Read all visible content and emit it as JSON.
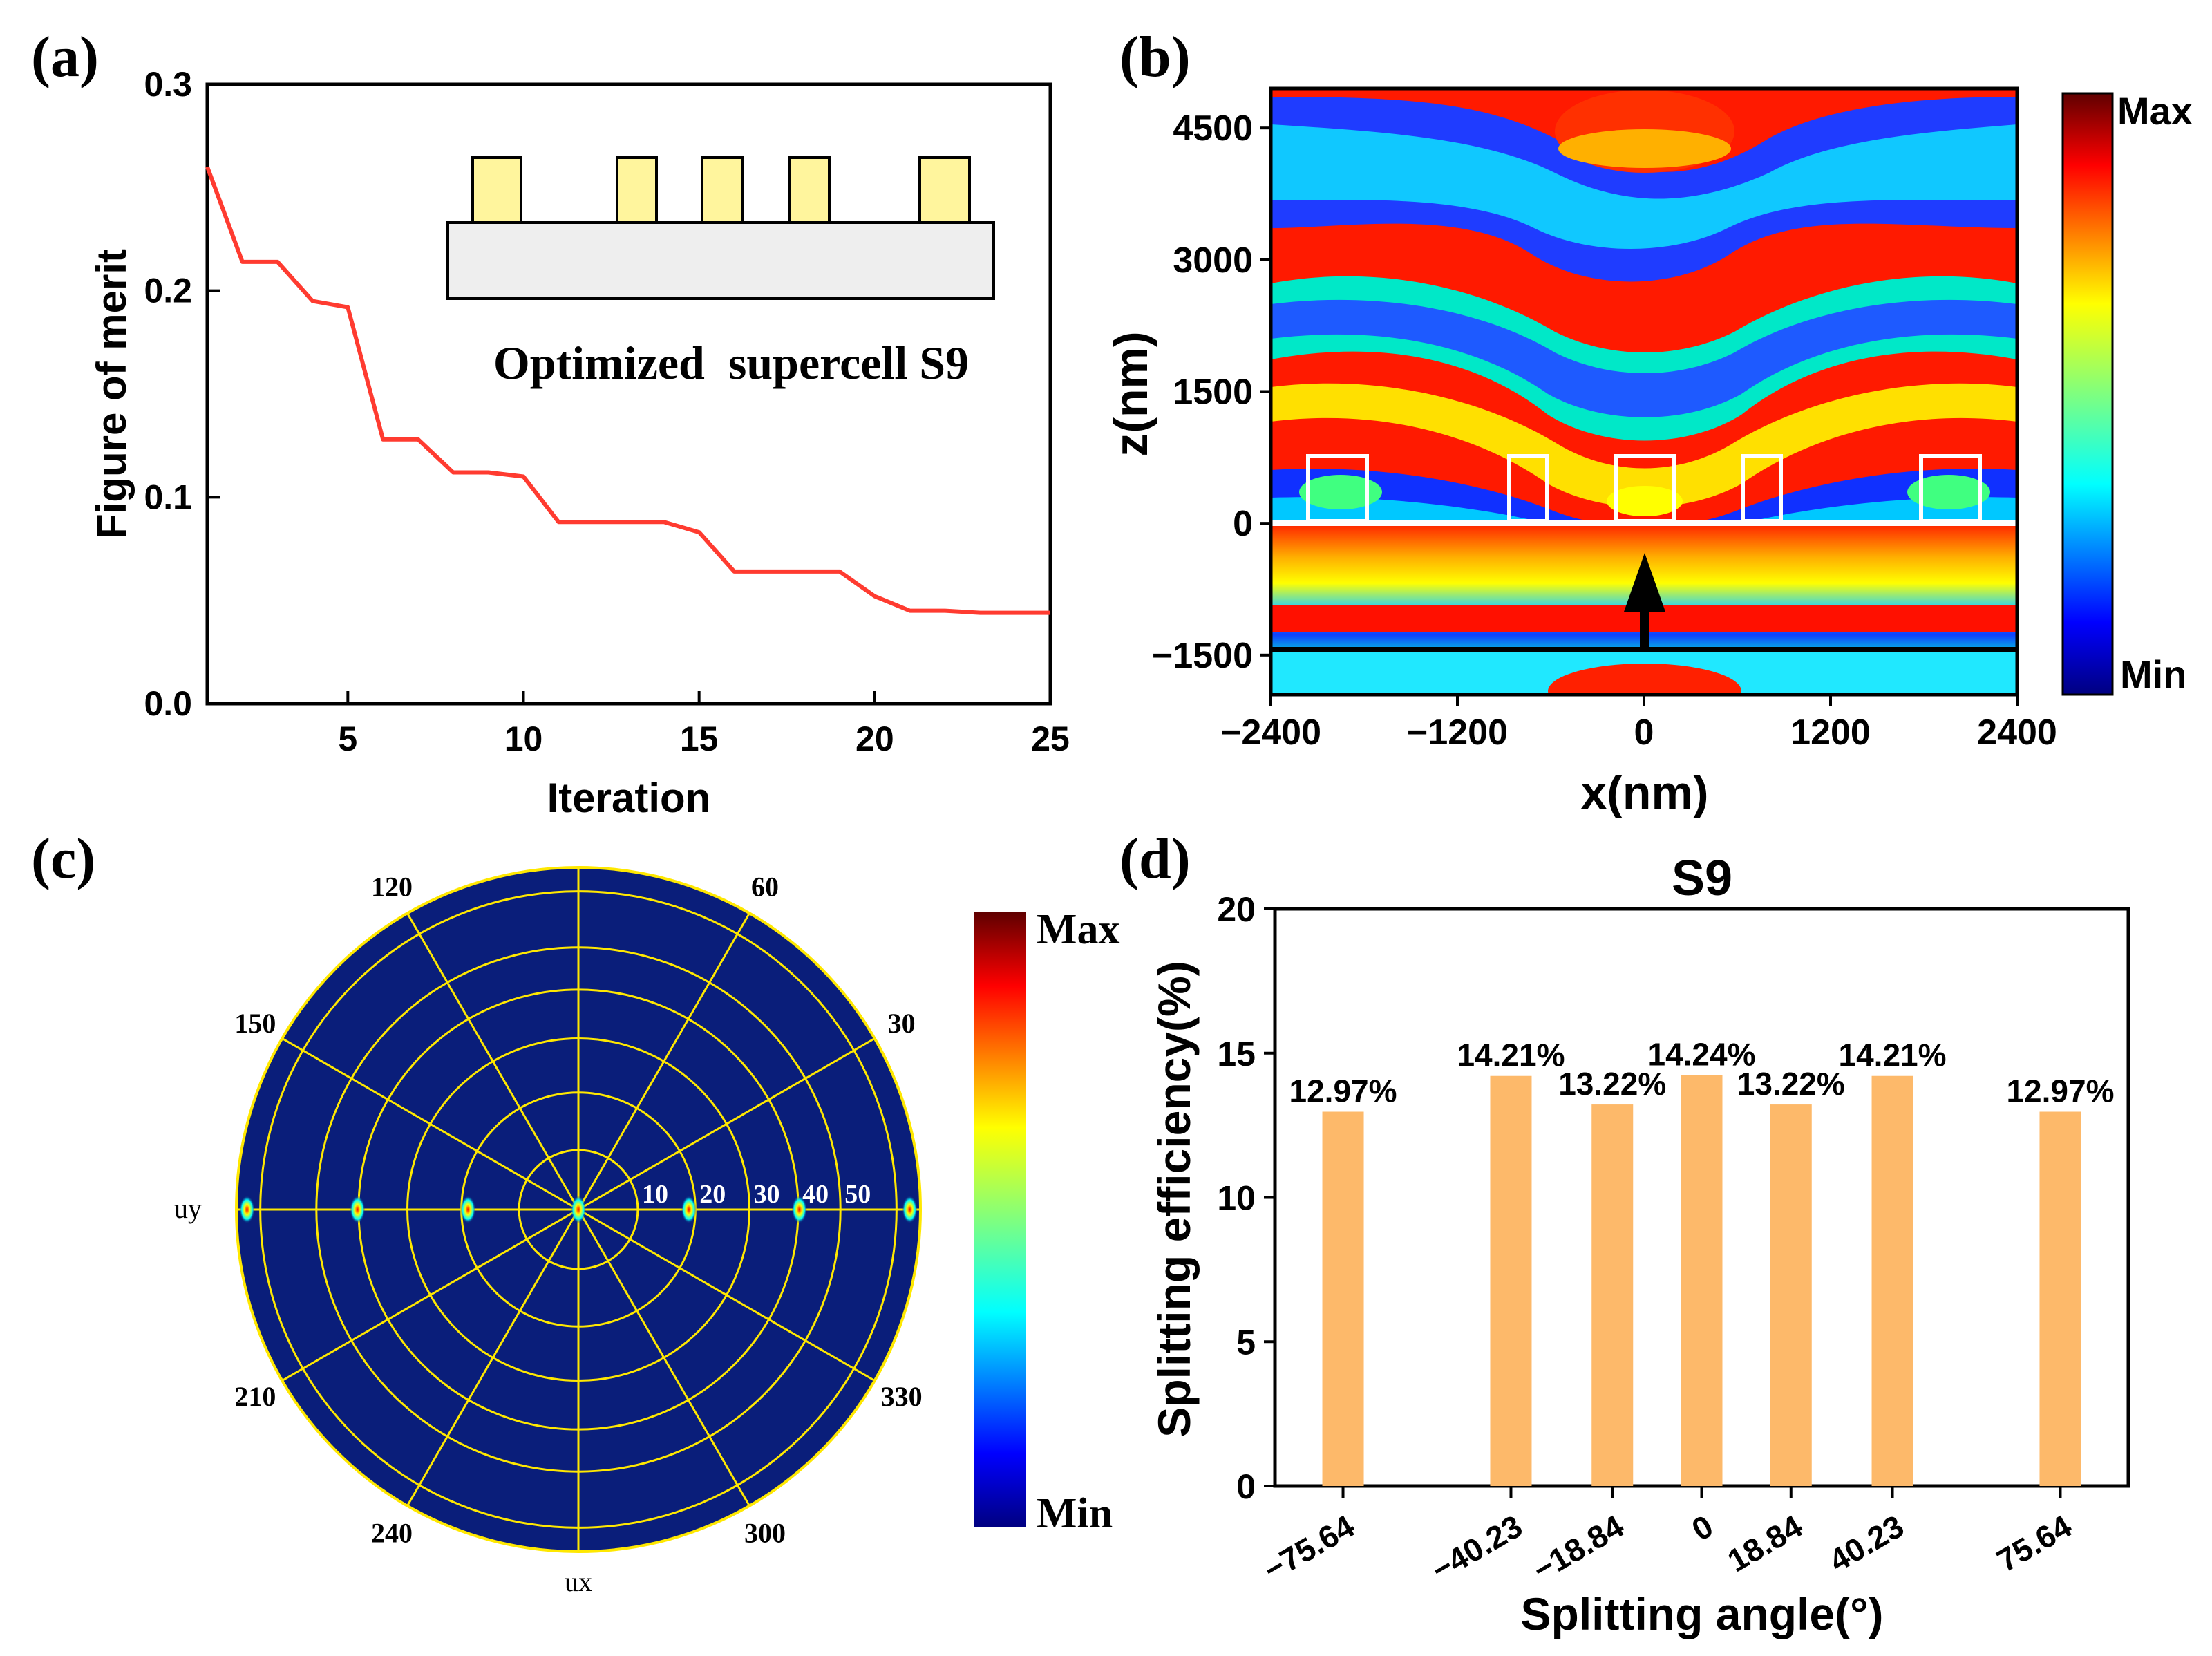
{
  "panels": {
    "a": {
      "letter": "(a)"
    },
    "b": {
      "letter": "(b)"
    },
    "c": {
      "letter": "(c)"
    },
    "d": {
      "letter": "(d)"
    }
  },
  "chart_data": [
    {
      "id": "a",
      "type": "line",
      "title": "",
      "xlabel": "Iteration",
      "ylabel": "Figure of merit",
      "xlim": [
        1,
        25
      ],
      "ylim": [
        0.0,
        0.3
      ],
      "xticks": [
        5,
        10,
        15,
        20,
        25
      ],
      "yticks": [
        0.0,
        0.1,
        0.2,
        0.3
      ],
      "ytick_labels": [
        "0.0",
        "0.1",
        "0.2",
        "0.3"
      ],
      "series": [
        {
          "name": "Figure of merit",
          "color": "#ff3b30",
          "x": [
            1,
            2,
            3,
            4,
            5,
            6,
            7,
            8,
            9,
            10,
            11,
            12,
            13,
            14,
            15,
            16,
            17,
            18,
            19,
            20,
            21,
            22,
            23,
            24,
            25
          ],
          "y": [
            0.26,
            0.214,
            0.214,
            0.195,
            0.192,
            0.128,
            0.128,
            0.112,
            0.112,
            0.11,
            0.088,
            0.088,
            0.088,
            0.088,
            0.083,
            0.064,
            0.064,
            0.064,
            0.064,
            0.052,
            0.045,
            0.045,
            0.044,
            0.044,
            0.044
          ]
        }
      ],
      "inset": {
        "caption": "Optimized  supercell S9",
        "ridges": 5,
        "ridge_color": "#fff59d",
        "substrate_color": "#eeeeee"
      }
    },
    {
      "id": "b",
      "type": "heatmap",
      "xlabel": "x(nm)",
      "ylabel": "z(nm)",
      "xlim": [
        -2400,
        2400
      ],
      "ylim": [
        -1950,
        4950
      ],
      "xticks": [
        -2400,
        -1200,
        0,
        1200,
        2400
      ],
      "xtick_labels": [
        "−2400",
        "−1200",
        "0",
        "1200",
        "2400"
      ],
      "yticks": [
        -1500,
        0,
        1500,
        3000,
        4500
      ],
      "ytick_labels": [
        "−1500",
        "0",
        "1500",
        "3000",
        "4500"
      ],
      "interface_z": 0,
      "source_z": -1500,
      "ridges_x": [
        -2000,
        -740,
        0,
        740,
        2000
      ],
      "colorbar": {
        "max_label": "Max",
        "min_label": "Min"
      }
    },
    {
      "id": "c",
      "type": "polar-heatmap",
      "angle_labels": [
        "30",
        "60",
        "120",
        "150",
        "210",
        "240",
        "300",
        "330"
      ],
      "radial_labels": [
        "10",
        "20",
        "30",
        "40",
        "50"
      ],
      "axis_labels": {
        "horizontal": "uy",
        "vertical": "ux"
      },
      "spots_deg": [
        -75.64,
        -40.23,
        -18.84,
        0,
        18.84,
        40.23,
        75.64
      ],
      "background_color": "#0a1e7a",
      "grid_color": "#ffe800",
      "colorbar": {
        "max_label": "Max",
        "min_label": "Min"
      }
    },
    {
      "id": "d",
      "type": "bar",
      "title": "S9",
      "xlabel": "Splitting angle(°)",
      "ylabel": "Splitting efficiency(%)",
      "ylim": [
        0,
        20
      ],
      "yticks": [
        0,
        5,
        10,
        15,
        20
      ],
      "xlim": [
        -90,
        90
      ],
      "bar_color": "#fdb96a",
      "categories": [
        "−75.64",
        "−40.23",
        "−18.84",
        "0",
        "18.84",
        "40.23",
        "75.64"
      ],
      "x": [
        -75.64,
        -40.23,
        -18.84,
        0,
        18.84,
        40.23,
        75.64
      ],
      "values": [
        12.97,
        14.21,
        13.22,
        14.24,
        13.22,
        14.21,
        12.97
      ],
      "data_labels": [
        "12.97%",
        "14.21%",
        "13.22%",
        "14.24%",
        "13.22%",
        "14.21%",
        "12.97%"
      ]
    }
  ]
}
